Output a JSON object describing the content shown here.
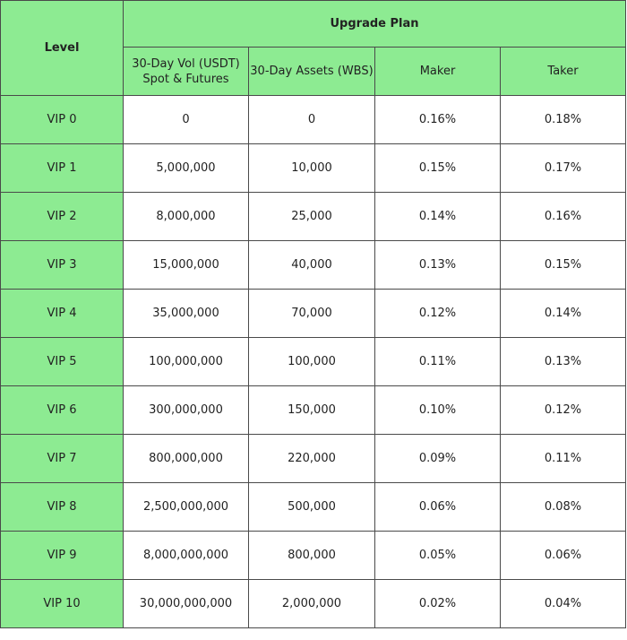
{
  "table": {
    "headers": {
      "level": "Level",
      "upgrade_plan": "Upgrade Plan",
      "vol_line1": "30-Day Vol (USDT)",
      "vol_line2": "Spot & Futures",
      "assets": "30-Day Assets (WBS)",
      "maker": "Maker",
      "taker": "Taker"
    },
    "rows": [
      {
        "level": "VIP 0",
        "vol": "0",
        "assets": "0",
        "maker": "0.16%",
        "taker": "0.18%"
      },
      {
        "level": "VIP 1",
        "vol": "5,000,000",
        "assets": "10,000",
        "maker": "0.15%",
        "taker": "0.17%"
      },
      {
        "level": "VIP 2",
        "vol": "8,000,000",
        "assets": "25,000",
        "maker": "0.14%",
        "taker": "0.16%"
      },
      {
        "level": "VIP 3",
        "vol": "15,000,000",
        "assets": "40,000",
        "maker": "0.13%",
        "taker": "0.15%"
      },
      {
        "level": "VIP 4",
        "vol": "35,000,000",
        "assets": "70,000",
        "maker": "0.12%",
        "taker": "0.14%"
      },
      {
        "level": "VIP 5",
        "vol": "100,000,000",
        "assets": "100,000",
        "maker": "0.11%",
        "taker": "0.13%"
      },
      {
        "level": "VIP 6",
        "vol": "300,000,000",
        "assets": "150,000",
        "maker": "0.10%",
        "taker": "0.12%"
      },
      {
        "level": "VIP 7",
        "vol": "800,000,000",
        "assets": "220,000",
        "maker": "0.09%",
        "taker": "0.11%"
      },
      {
        "level": "VIP 8",
        "vol": "2,500,000,000",
        "assets": "500,000",
        "maker": "0.06%",
        "taker": "0.08%"
      },
      {
        "level": "VIP 9",
        "vol": "8,000,000,000",
        "assets": "800,000",
        "maker": "0.05%",
        "taker": "0.06%"
      },
      {
        "level": "VIP 10",
        "vol": "30,000,000,000",
        "assets": "2,000,000",
        "maker": "0.02%",
        "taker": "0.04%"
      }
    ]
  },
  "colors": {
    "header_green": "#8deb92",
    "border": "#4a4a4a",
    "body_background": "#ffffff"
  }
}
